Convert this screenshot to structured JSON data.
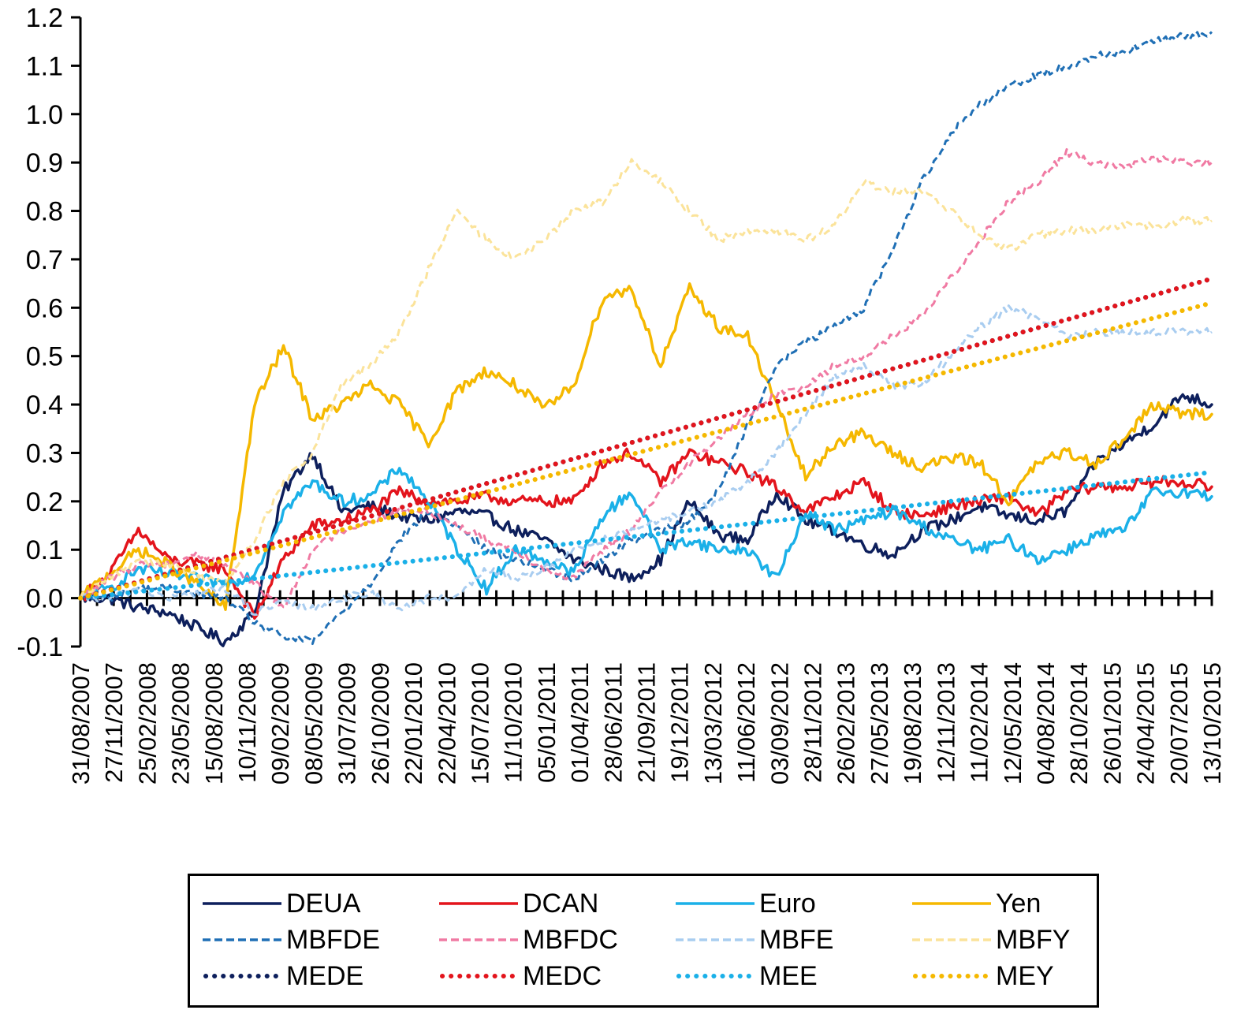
{
  "chart_data": {
    "type": "line",
    "title": "",
    "xlabel": "",
    "ylabel": "",
    "ylim": [
      -0.1,
      1.2
    ],
    "y_ticks": [
      "-0.1",
      "0.0",
      "0.1",
      "0.2",
      "0.3",
      "0.4",
      "0.5",
      "0.6",
      "0.7",
      "0.8",
      "0.9",
      "1.0",
      "1.1",
      "1.2"
    ],
    "x_tick_labels": [
      "31/08/2007",
      "27/11/2007",
      "25/02/2008",
      "23/05/2008",
      "15/08/2008",
      "10/11/2008",
      "09/02/2009",
      "08/05/2009",
      "31/07/2009",
      "26/10/2009",
      "22/01/2010",
      "22/04/2010",
      "15/07/2010",
      "11/10/2010",
      "05/01/2011",
      "01/04/2011",
      "28/06/2011",
      "21/09/2011",
      "19/12/2011",
      "13/03/2012",
      "11/06/2012",
      "03/09/2012",
      "28/11/2012",
      "26/02/2013",
      "27/05/2013",
      "19/08/2013",
      "12/11/2013",
      "11/02/2014",
      "12/05/2014",
      "04/08/2014",
      "28/10/2014",
      "26/01/2015",
      "24/04/2015",
      "20/07/2015",
      "13/10/2015"
    ],
    "legend_position": "bottom",
    "series": [
      {
        "name": "DEUA",
        "color": "#0d1f5c",
        "style": "solid",
        "values": [
          0.0,
          0.0,
          -0.02,
          -0.03,
          -0.06,
          -0.09,
          -0.03,
          0.22,
          0.3,
          0.18,
          0.19,
          0.17,
          0.16,
          0.18,
          0.17,
          0.14,
          0.12,
          0.08,
          0.06,
          0.04,
          0.08,
          0.2,
          0.13,
          0.12,
          0.22,
          0.16,
          0.14,
          0.11,
          0.09,
          0.14,
          0.16,
          0.19,
          0.17,
          0.16,
          0.18,
          0.28,
          0.32,
          0.36,
          0.42,
          0.4
        ]
      },
      {
        "name": "DCAN",
        "color": "#e3141c",
        "style": "solid",
        "values": [
          0.0,
          0.05,
          0.14,
          0.08,
          0.07,
          0.06,
          -0.04,
          0.08,
          0.15,
          0.16,
          0.18,
          0.22,
          0.2,
          0.2,
          0.21,
          0.2,
          0.2,
          0.2,
          0.28,
          0.3,
          0.24,
          0.3,
          0.28,
          0.26,
          0.23,
          0.18,
          0.21,
          0.24,
          0.18,
          0.17,
          0.19,
          0.2,
          0.21,
          0.17,
          0.22,
          0.23,
          0.23,
          0.24,
          0.24,
          0.23
        ]
      },
      {
        "name": "Euro",
        "color": "#1ab0e8",
        "style": "solid",
        "values": [
          0.0,
          0.02,
          0.06,
          0.05,
          0.04,
          0.03,
          0.05,
          0.18,
          0.24,
          0.2,
          0.21,
          0.27,
          0.2,
          0.1,
          0.02,
          0.1,
          0.08,
          0.05,
          0.17,
          0.22,
          0.1,
          0.12,
          0.1,
          0.1,
          0.04,
          0.18,
          0.14,
          0.16,
          0.18,
          0.15,
          0.12,
          0.1,
          0.12,
          0.08,
          0.1,
          0.13,
          0.14,
          0.22,
          0.22,
          0.21
        ]
      },
      {
        "name": "Yen",
        "color": "#f5b800",
        "style": "solid",
        "values": [
          0.0,
          0.05,
          0.1,
          0.07,
          0.03,
          -0.02,
          0.4,
          0.52,
          0.37,
          0.4,
          0.44,
          0.4,
          0.32,
          0.43,
          0.47,
          0.44,
          0.39,
          0.44,
          0.62,
          0.64,
          0.48,
          0.64,
          0.56,
          0.54,
          0.4,
          0.25,
          0.32,
          0.34,
          0.3,
          0.27,
          0.29,
          0.28,
          0.2,
          0.28,
          0.3,
          0.28,
          0.33,
          0.4,
          0.38,
          0.38
        ]
      },
      {
        "name": "MBFDE",
        "color": "#1f6fb5",
        "style": "dashed",
        "values": [
          0.0,
          0.0,
          0.02,
          0.02,
          0.01,
          0.0,
          -0.05,
          -0.08,
          -0.09,
          -0.03,
          0.03,
          0.12,
          0.18,
          0.15,
          0.1,
          0.08,
          0.06,
          0.04,
          0.08,
          0.12,
          0.14,
          0.16,
          0.22,
          0.36,
          0.48,
          0.53,
          0.56,
          0.6,
          0.72,
          0.86,
          0.96,
          1.02,
          1.06,
          1.08,
          1.1,
          1.12,
          1.13,
          1.15,
          1.16,
          1.17
        ]
      },
      {
        "name": "MBFDC",
        "color": "#f07aa3",
        "style": "dashed",
        "values": [
          0.0,
          0.04,
          0.07,
          0.07,
          0.09,
          0.07,
          0.03,
          -0.02,
          0.1,
          0.14,
          0.16,
          0.18,
          0.18,
          0.15,
          0.12,
          0.1,
          0.06,
          0.04,
          0.1,
          0.14,
          0.22,
          0.28,
          0.33,
          0.38,
          0.42,
          0.44,
          0.48,
          0.5,
          0.54,
          0.58,
          0.66,
          0.74,
          0.82,
          0.86,
          0.92,
          0.9,
          0.89,
          0.91,
          0.9,
          0.9
        ]
      },
      {
        "name": "MBFE",
        "color": "#a9cdf0",
        "style": "dashed",
        "values": [
          0.0,
          0.0,
          0.02,
          0.0,
          0.01,
          0.02,
          -0.03,
          -0.01,
          -0.02,
          0.0,
          0.01,
          -0.02,
          0.0,
          0.0,
          0.06,
          0.04,
          0.06,
          0.1,
          0.12,
          0.14,
          0.16,
          0.18,
          0.2,
          0.24,
          0.3,
          0.38,
          0.46,
          0.48,
          0.44,
          0.44,
          0.5,
          0.56,
          0.6,
          0.58,
          0.54,
          0.55,
          0.55,
          0.55,
          0.55,
          0.55
        ]
      },
      {
        "name": "MBFY",
        "color": "#fbe39a",
        "style": "dashed",
        "values": [
          0.0,
          0.04,
          0.08,
          0.07,
          0.05,
          0.03,
          0.12,
          0.24,
          0.3,
          0.44,
          0.48,
          0.55,
          0.68,
          0.8,
          0.74,
          0.7,
          0.74,
          0.8,
          0.82,
          0.9,
          0.86,
          0.8,
          0.74,
          0.76,
          0.76,
          0.74,
          0.77,
          0.86,
          0.84,
          0.84,
          0.8,
          0.75,
          0.72,
          0.75,
          0.76,
          0.76,
          0.77,
          0.77,
          0.78,
          0.78
        ]
      },
      {
        "name": "MEDE",
        "color": "#0d1f5c",
        "style": "dotted",
        "values": [
          0.0,
          0.66
        ]
      },
      {
        "name": "MEDC",
        "color": "#e3141c",
        "style": "dotted",
        "values": [
          0.0,
          0.66
        ]
      },
      {
        "name": "MEE",
        "color": "#1ab0e8",
        "style": "dotted",
        "values": [
          0.0,
          0.26
        ]
      },
      {
        "name": "MEY",
        "color": "#f5b800",
        "style": "dotted",
        "values": [
          0.0,
          0.61
        ]
      }
    ]
  }
}
